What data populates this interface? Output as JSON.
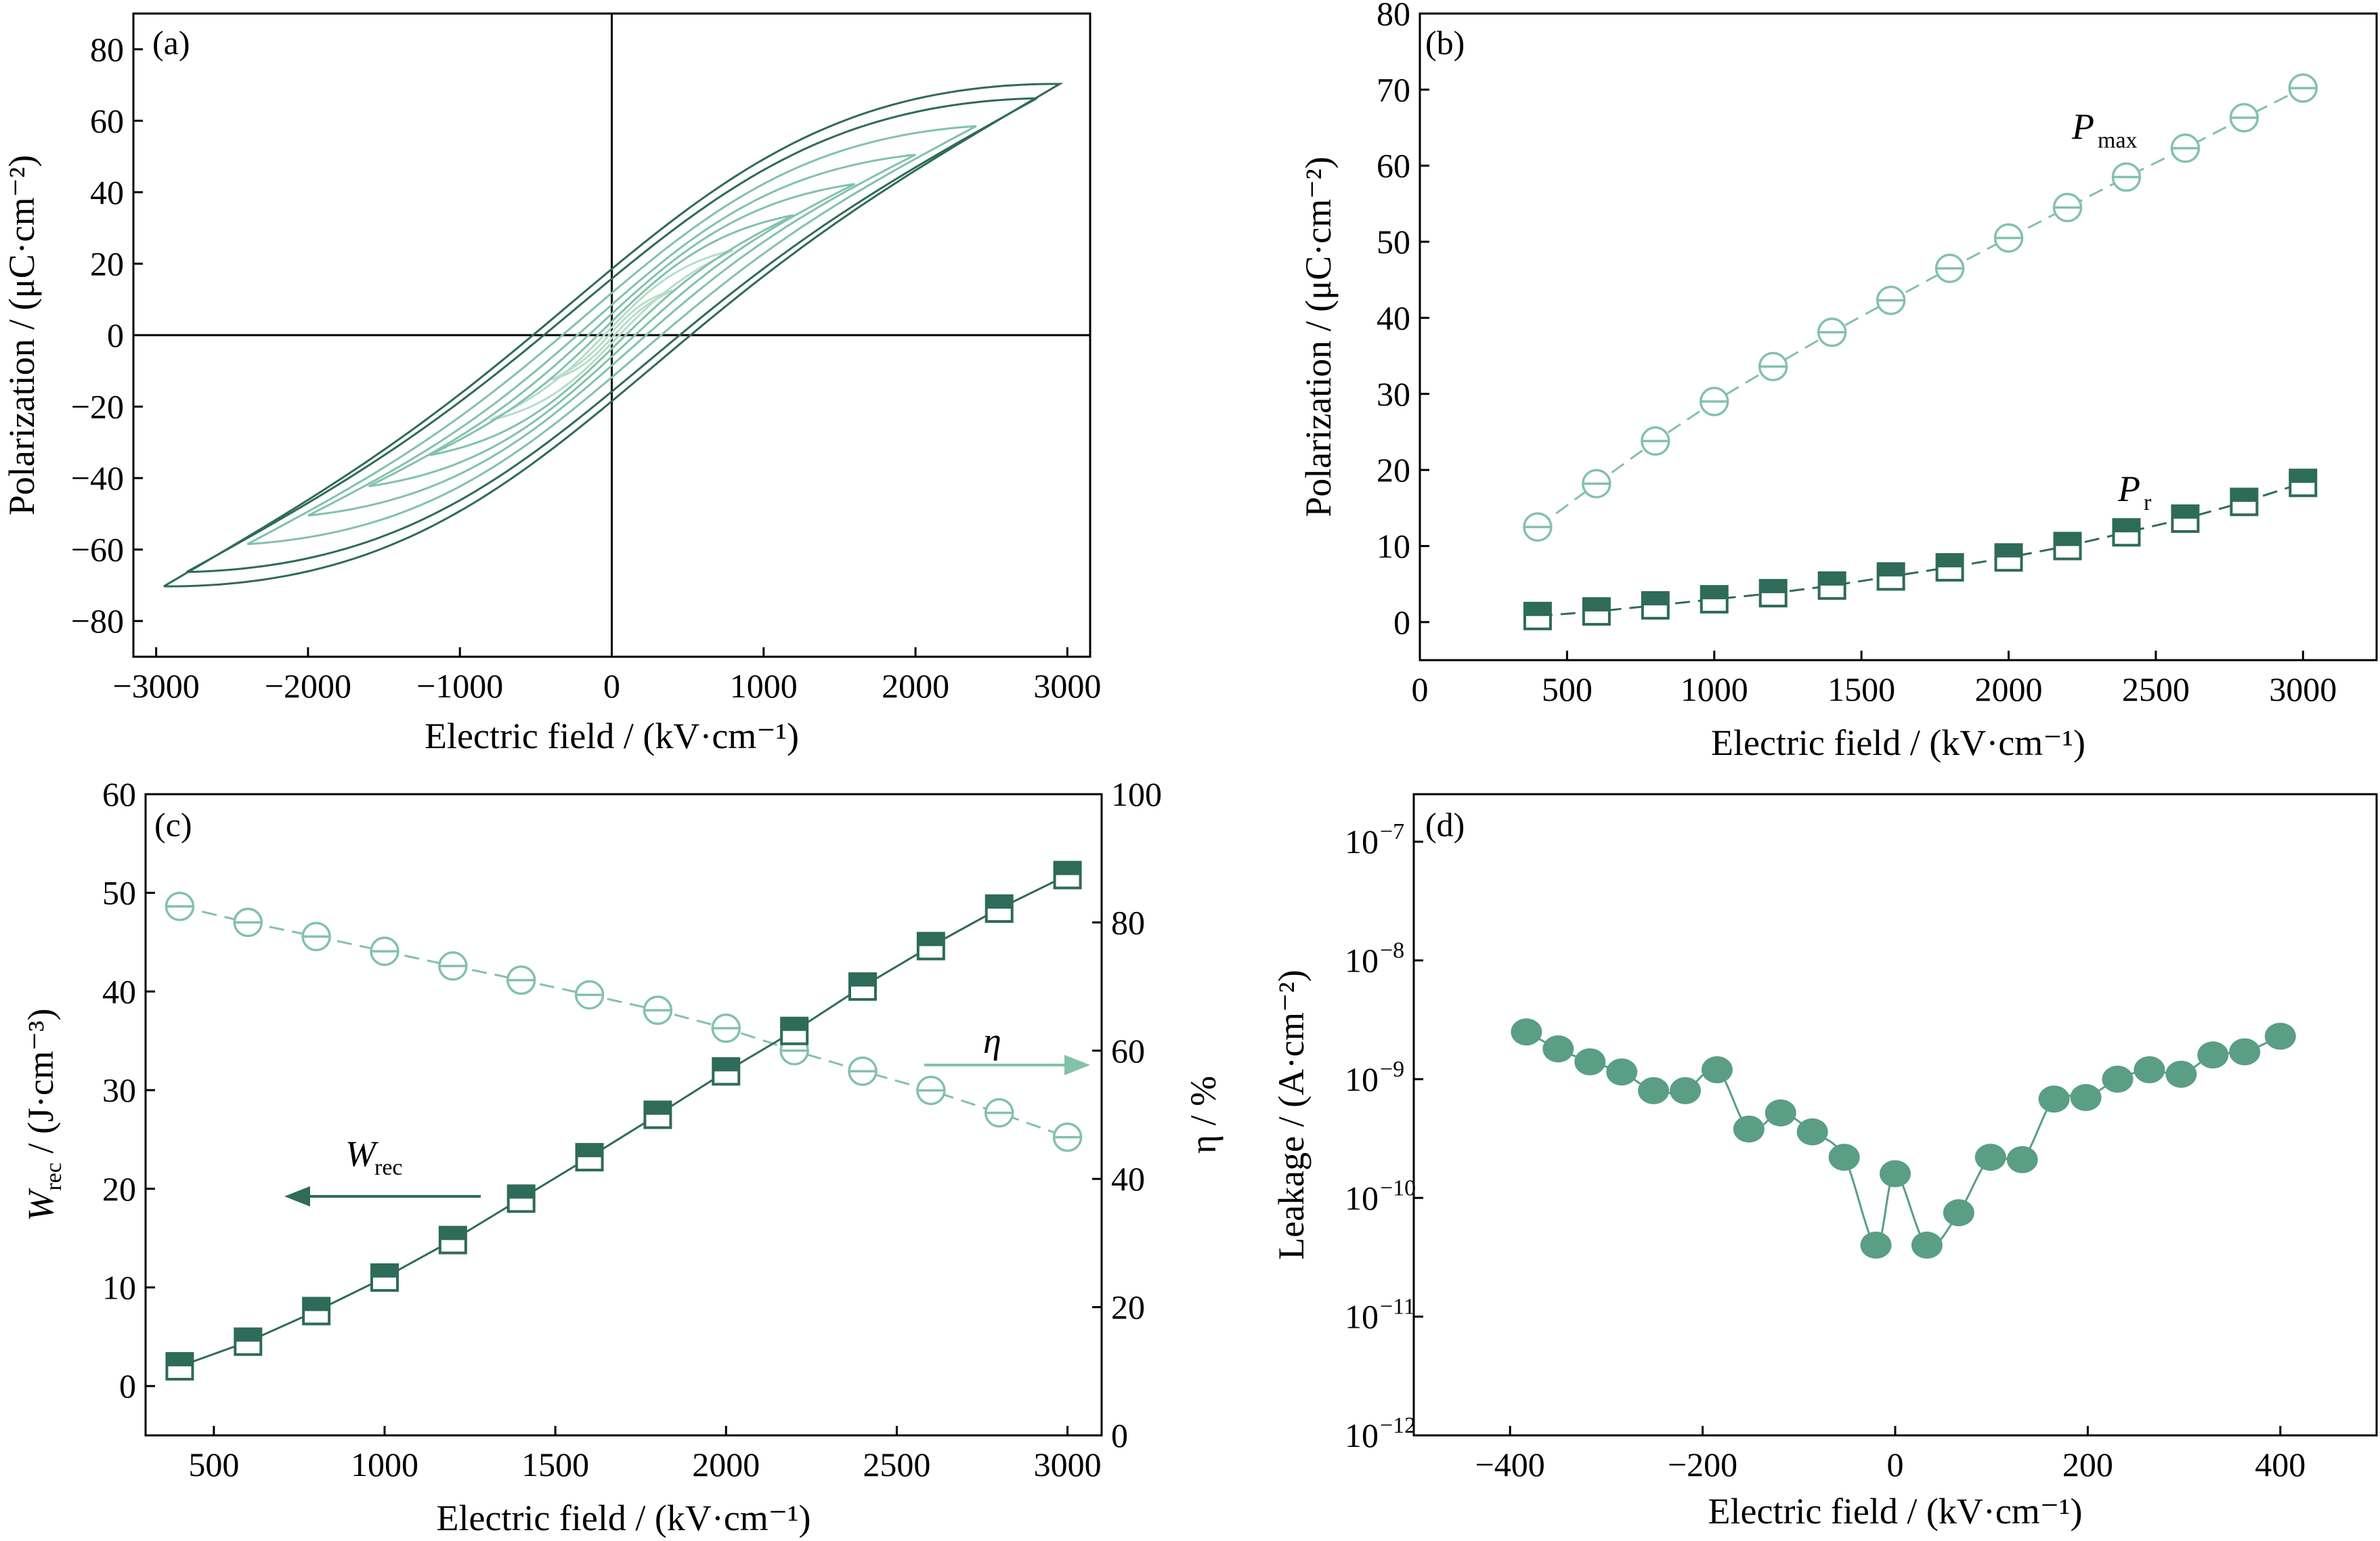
{
  "colors": {
    "dark": "#2e6b59",
    "light": "#82c2a9",
    "lighter": "#b8dccb",
    "leak": "#5a9e85"
  },
  "chart_data": [
    {
      "id": "a",
      "panel_label": "(a)",
      "type": "line",
      "xlabel": "Electric field / (kV·cm⁻¹)",
      "ylabel": "Polarization / (μC·cm⁻²)",
      "xlim": [
        -3150,
        3150
      ],
      "ylim": [
        -90,
        90
      ],
      "xticks": [
        -3000,
        -2000,
        -1000,
        0,
        1000,
        2000,
        3000
      ],
      "xtick_labels": [
        "−3000",
        "−2000",
        "−1000",
        "0",
        "1000",
        "2000",
        "3000"
      ],
      "yticks": [
        -80,
        -60,
        -40,
        -20,
        0,
        20,
        40,
        60,
        80
      ],
      "ytick_labels": [
        "−80",
        "−60",
        "−40",
        "−20",
        "0",
        "20",
        "40",
        "60",
        "80"
      ],
      "loops": [
        {
          "emax": 400,
          "pmax": 12.5,
          "pr": 0.8
        },
        {
          "emax": 800,
          "pmax": 23.8,
          "pr": 2.2
        },
        {
          "emax": 1200,
          "pmax": 33.6,
          "pr": 3.8
        },
        {
          "emax": 1600,
          "pmax": 42.3,
          "pr": 6.0
        },
        {
          "emax": 2000,
          "pmax": 50.5,
          "pr": 8.5
        },
        {
          "emax": 2400,
          "pmax": 58.5,
          "pr": 11.8
        },
        {
          "emax": 2800,
          "pmax": 66.3,
          "pr": 15.8
        },
        {
          "emax": 2950,
          "pmax": 70.3,
          "pr": 18.5
        }
      ]
    },
    {
      "id": "b",
      "panel_label": "(b)",
      "type": "scatter",
      "xlabel": "Electric field / (kV·cm⁻¹)",
      "ylabel": "Polarization / (μC·cm⁻²)",
      "xlim": [
        0,
        3250
      ],
      "ylim": [
        -5,
        80
      ],
      "xticks": [
        0,
        500,
        1000,
        1500,
        2000,
        2500,
        3000
      ],
      "xtick_labels": [
        "0",
        "500",
        "1000",
        "1500",
        "2000",
        "2500",
        "3000"
      ],
      "yticks": [
        0,
        10,
        20,
        30,
        40,
        50,
        60,
        70,
        80
      ],
      "ytick_labels": [
        "0",
        "10",
        "20",
        "30",
        "40",
        "50",
        "60",
        "70",
        "80"
      ],
      "x": [
        400,
        600,
        800,
        1000,
        1200,
        1400,
        1600,
        1800,
        2000,
        2200,
        2400,
        2600,
        2800,
        3000
      ],
      "series": [
        {
          "label_main": "P",
          "label_sub": "max",
          "values": [
            12.5,
            18.2,
            23.8,
            29.0,
            33.6,
            38.1,
            42.3,
            46.5,
            50.5,
            54.5,
            58.5,
            62.3,
            66.3,
            70.2
          ]
        },
        {
          "label_main": "P",
          "label_sub": "r",
          "values": [
            0.8,
            1.4,
            2.2,
            3.0,
            3.8,
            4.8,
            6.0,
            7.2,
            8.5,
            10.0,
            11.8,
            13.6,
            15.8,
            18.3
          ]
        }
      ]
    },
    {
      "id": "c",
      "panel_label": "(c)",
      "type": "scatter",
      "xlabel": "Electric field / (kV·cm⁻¹)",
      "ylabel_main": "W",
      "ylabel_sub": "rec",
      "ylabel_unit": " / (J·cm⁻³)",
      "ylabel_right": "η / %",
      "xlim": [
        300,
        3100
      ],
      "ylim": [
        -5,
        60
      ],
      "ylim_right": [
        0,
        100
      ],
      "xticks": [
        500,
        1000,
        1500,
        2000,
        2500,
        3000
      ],
      "xtick_labels": [
        "500",
        "1000",
        "1500",
        "2000",
        "2500",
        "3000"
      ],
      "yticks": [
        0,
        10,
        20,
        30,
        40,
        50,
        60
      ],
      "ytick_labels": [
        "0",
        "10",
        "20",
        "30",
        "40",
        "50",
        "60"
      ],
      "yticks_right": [
        0,
        20,
        40,
        60,
        80,
        100
      ],
      "ytick_labels_right": [
        "0",
        "20",
        "40",
        "60",
        "80",
        "100"
      ],
      "x": [
        400,
        600,
        800,
        1000,
        1200,
        1400,
        1600,
        1800,
        2000,
        2200,
        2400,
        2600,
        2800,
        3000
      ],
      "series": [
        {
          "label_main": "W",
          "label_sub": "rec",
          "axis": "left",
          "values": [
            2.0,
            4.5,
            7.6,
            11.0,
            14.8,
            19.0,
            23.2,
            27.5,
            31.9,
            36.0,
            40.5,
            44.6,
            48.4,
            51.8
          ]
        },
        {
          "label_main": "η",
          "label_sub": "",
          "axis": "right",
          "values": [
            82.5,
            80.0,
            77.8,
            75.5,
            73.2,
            71.0,
            68.7,
            66.3,
            63.5,
            60.0,
            56.8,
            53.8,
            50.3,
            46.5
          ]
        }
      ]
    },
    {
      "id": "d",
      "panel_label": "(d)",
      "type": "scatter",
      "xlabel": "Electric field / (kV·cm⁻¹)",
      "ylabel": "Leakage / (A·cm⁻²)",
      "scale_y": "log",
      "xlim": [
        -500,
        500
      ],
      "ylim_log10": [
        -12,
        -6.6
      ],
      "xticks": [
        -400,
        -200,
        0,
        200,
        400
      ],
      "xtick_labels": [
        "−400",
        "−200",
        "0",
        "200",
        "400"
      ],
      "yticks_log10": [
        -12,
        -11,
        -10,
        -9,
        -8,
        -7
      ],
      "ytick_base": "10",
      "ytick_exponents": [
        "−12",
        "−11",
        "−10",
        "−9",
        "−8",
        "−7"
      ],
      "x": [
        -383,
        -350,
        -317,
        -284,
        -251,
        -218,
        -185,
        -152,
        -119,
        -86,
        -53,
        -20,
        0,
        33,
        66,
        99,
        132,
        165,
        198,
        231,
        264,
        297,
        330,
        363,
        400
      ],
      "values": [
        2.5e-09,
        1.8e-09,
        1.4e-09,
        1.15e-09,
        8e-10,
        8e-10,
        1.2e-09,
        3.8e-10,
        5.2e-10,
        3.6e-10,
        2.2e-10,
        4e-11,
        1.6e-10,
        4e-11,
        7.5e-11,
        2.2e-10,
        2.1e-10,
        6.8e-10,
        7e-10,
        1e-09,
        1.2e-09,
        1.1e-09,
        1.6e-09,
        1.7e-09,
        2.3e-09
      ]
    }
  ]
}
